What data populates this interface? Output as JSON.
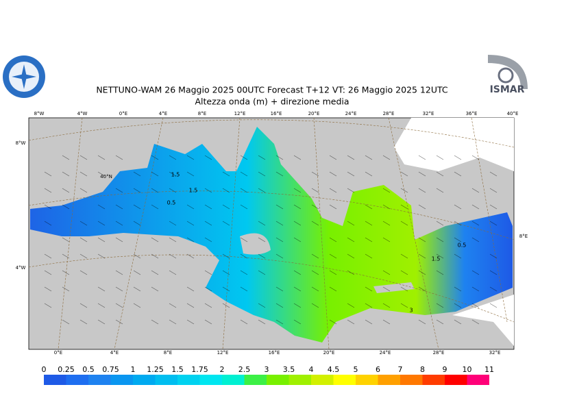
{
  "header": {
    "title": "NETTUNO-WAM  26   Maggio  2025 00UTC Forecast T+12 VT: 26   Maggio  2025 12UTC",
    "subtitle": "Altezza onda (m) + direzione media",
    "logo_right": "ISMAR"
  },
  "graticule": {
    "top": [
      "8°W",
      "4°W",
      "0°E",
      "4°E",
      "8°E",
      "12°E",
      "16°E",
      "20°E",
      "24°E",
      "28°E",
      "32°E",
      "36°E",
      "40°E"
    ],
    "bottom": [
      "0°E",
      "4°E",
      "8°E",
      "12°E",
      "16°E",
      "20°E",
      "24°E",
      "28°E",
      "32°E"
    ],
    "left": [
      "8°W",
      "4°W"
    ],
    "inner": [
      "40°N"
    ],
    "right": [
      "8°E"
    ]
  },
  "contour_labels": [
    "1.5",
    "0.5",
    "1.5",
    "0.5",
    "1.5",
    "3"
  ],
  "colorbar": {
    "levels": [
      0,
      0.25,
      0.5,
      0.75,
      1,
      1.25,
      1.5,
      1.75,
      2,
      2.5,
      3,
      3.5,
      4,
      4.5,
      5,
      6,
      7,
      8,
      9,
      10,
      11
    ],
    "colors": [
      "#1e5ae6",
      "#1e6ef0",
      "#1e82f0",
      "#0a96f0",
      "#00aaf0",
      "#00bef0",
      "#00d2f0",
      "#00e6f0",
      "#00f0d2",
      "#3cf046",
      "#78f000",
      "#a0f000",
      "#d2f000",
      "#ffff00",
      "#ffd200",
      "#ffa000",
      "#ff7800",
      "#ff3c00",
      "#ff0000",
      "#ff0078",
      "#ff00c8"
    ]
  }
}
